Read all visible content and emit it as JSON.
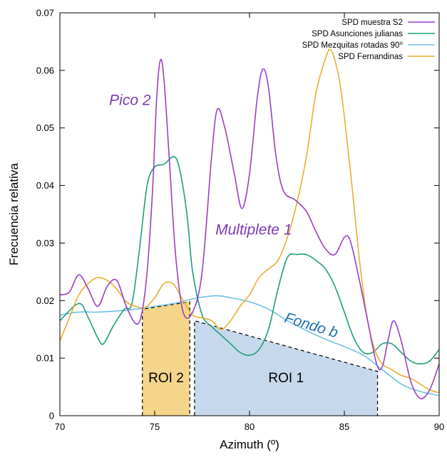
{
  "chart_data": {
    "type": "line",
    "xlabel": "Azimuth (º)",
    "ylabel": "Frecuencia relativa",
    "xlim": [
      70,
      90
    ],
    "ylim": [
      0,
      0.07
    ],
    "x_ticks": [
      "70",
      "75",
      "80",
      "85",
      "90"
    ],
    "y_ticks": [
      "0",
      "0.01",
      "0.02",
      "0.03",
      "0.04",
      "0.05",
      "0.06",
      "0.07"
    ],
    "grid": false,
    "legend_position": "top-right",
    "series": [
      {
        "name": "SPD muestra S2",
        "color": "#9b3fc4",
        "points": [
          [
            70,
            0.021
          ],
          [
            70.5,
            0.0215
          ],
          [
            71,
            0.0245
          ],
          [
            71.5,
            0.022
          ],
          [
            72,
            0.019
          ],
          [
            72.5,
            0.0225
          ],
          [
            73,
            0.0235
          ],
          [
            73.5,
            0.019
          ],
          [
            74,
            0.016
          ],
          [
            74.3,
            0.0175
          ],
          [
            74.6,
            0.025
          ],
          [
            74.9,
            0.04
          ],
          [
            75.1,
            0.055
          ],
          [
            75.3,
            0.0618
          ],
          [
            75.5,
            0.058
          ],
          [
            75.8,
            0.043
          ],
          [
            76.1,
            0.028
          ],
          [
            76.5,
            0.018
          ],
          [
            77,
            0.018
          ],
          [
            77.5,
            0.025
          ],
          [
            78,
            0.045
          ],
          [
            78.3,
            0.0532
          ],
          [
            78.7,
            0.05
          ],
          [
            79.2,
            0.042
          ],
          [
            79.6,
            0.036
          ],
          [
            80,
            0.042
          ],
          [
            80.4,
            0.055
          ],
          [
            80.7,
            0.0602
          ],
          [
            81,
            0.057
          ],
          [
            81.4,
            0.045
          ],
          [
            81.8,
            0.039
          ],
          [
            82.4,
            0.0375
          ],
          [
            83,
            0.0355
          ],
          [
            83.5,
            0.032
          ],
          [
            84,
            0.029
          ],
          [
            84.5,
            0.028
          ],
          [
            85,
            0.031
          ],
          [
            85.3,
            0.0305
          ],
          [
            85.7,
            0.025
          ],
          [
            86.2,
            0.017
          ],
          [
            86.7,
            0.009
          ],
          [
            87,
            0.0085
          ],
          [
            87.3,
            0.013
          ],
          [
            87.6,
            0.0165
          ],
          [
            88,
            0.013
          ],
          [
            88.5,
            0.006
          ],
          [
            89,
            0.003
          ],
          [
            89.5,
            0.0045
          ],
          [
            90,
            0.009
          ]
        ]
      },
      {
        "name": "SPD Asunciones julianas",
        "color": "#1f9e78",
        "points": [
          [
            70,
            0.0165
          ],
          [
            71,
            0.0195
          ],
          [
            71.5,
            0.017
          ],
          [
            72,
            0.0135
          ],
          [
            72.3,
            0.0125
          ],
          [
            72.8,
            0.0155
          ],
          [
            73.4,
            0.0185
          ],
          [
            73.8,
            0.0195
          ],
          [
            74.2,
            0.029
          ],
          [
            74.6,
            0.04
          ],
          [
            75,
            0.0432
          ],
          [
            75.5,
            0.0437
          ],
          [
            76,
            0.045
          ],
          [
            76.3,
            0.043
          ],
          [
            76.7,
            0.035
          ],
          [
            77,
            0.025
          ],
          [
            77.5,
            0.0175
          ],
          [
            78,
            0.0155
          ],
          [
            78.5,
            0.014
          ],
          [
            79,
            0.0125
          ],
          [
            79.5,
            0.011
          ],
          [
            80,
            0.0105
          ],
          [
            80.5,
            0.0115
          ],
          [
            81,
            0.015
          ],
          [
            81.5,
            0.022
          ],
          [
            82,
            0.0275
          ],
          [
            82.5,
            0.028
          ],
          [
            83,
            0.028
          ],
          [
            83.5,
            0.027
          ],
          [
            84,
            0.0255
          ],
          [
            84.5,
            0.0225
          ],
          [
            85,
            0.018
          ],
          [
            85.5,
            0.0135
          ],
          [
            86,
            0.011
          ],
          [
            86.5,
            0.011
          ],
          [
            87,
            0.0125
          ],
          [
            87.5,
            0.0125
          ],
          [
            88,
            0.011
          ],
          [
            88.5,
            0.0095
          ],
          [
            89,
            0.009
          ],
          [
            89.5,
            0.0095
          ],
          [
            90,
            0.0115
          ]
        ]
      },
      {
        "name": "SPD Mezquitas rotadas 90⁰",
        "color": "#6ec1e4",
        "points": [
          [
            70,
            0.0175
          ],
          [
            71,
            0.018
          ],
          [
            72,
            0.018
          ],
          [
            73,
            0.0182
          ],
          [
            74,
            0.0185
          ],
          [
            75,
            0.019
          ],
          [
            76,
            0.0195
          ],
          [
            77,
            0.0203
          ],
          [
            78,
            0.0208
          ],
          [
            78.5,
            0.0208
          ],
          [
            79,
            0.0205
          ],
          [
            80,
            0.0198
          ],
          [
            81,
            0.0185
          ],
          [
            82,
            0.0165
          ],
          [
            83,
            0.0148
          ],
          [
            84,
            0.0133
          ],
          [
            85,
            0.012
          ],
          [
            86,
            0.0105
          ],
          [
            87,
            0.008
          ],
          [
            88,
            0.0055
          ],
          [
            89,
            0.0042
          ],
          [
            90,
            0.0035
          ]
        ]
      },
      {
        "name": "SPD Fernandinas",
        "color": "#e8ae2f",
        "points": [
          [
            70,
            0.013
          ],
          [
            70.5,
            0.017
          ],
          [
            71,
            0.021
          ],
          [
            71.5,
            0.023
          ],
          [
            72,
            0.024
          ],
          [
            72.5,
            0.0235
          ],
          [
            73,
            0.022
          ],
          [
            73.5,
            0.0198
          ],
          [
            74,
            0.019
          ],
          [
            74.5,
            0.0188
          ],
          [
            75,
            0.0205
          ],
          [
            75.5,
            0.023
          ],
          [
            76,
            0.0228
          ],
          [
            76.5,
            0.02
          ],
          [
            77,
            0.0175
          ],
          [
            77.5,
            0.017
          ],
          [
            78,
            0.0165
          ],
          [
            78.5,
            0.015
          ],
          [
            79,
            0.0165
          ],
          [
            79.5,
            0.019
          ],
          [
            80,
            0.021
          ],
          [
            80.5,
            0.024
          ],
          [
            81,
            0.0255
          ],
          [
            81.5,
            0.027
          ],
          [
            82,
            0.031
          ],
          [
            82.5,
            0.037
          ],
          [
            83,
            0.045
          ],
          [
            83.5,
            0.056
          ],
          [
            84,
            0.062
          ],
          [
            84.3,
            0.0635
          ],
          [
            84.7,
            0.059
          ],
          [
            85,
            0.052
          ],
          [
            85.4,
            0.04
          ],
          [
            85.8,
            0.027
          ],
          [
            86.2,
            0.017
          ],
          [
            86.6,
            0.0115
          ],
          [
            87,
            0.009
          ],
          [
            87.5,
            0.008
          ],
          [
            88,
            0.007
          ],
          [
            88.5,
            0.0065
          ],
          [
            89,
            0.0055
          ],
          [
            89.5,
            0.0045
          ],
          [
            90,
            0.004
          ]
        ]
      }
    ],
    "regions": [
      {
        "label": "ROI 2",
        "color": "#f5d58a",
        "polygon": [
          [
            74.35,
            0
          ],
          [
            74.35,
            0.0185
          ],
          [
            76.85,
            0.0198
          ],
          [
            76.85,
            0
          ]
        ]
      },
      {
        "label": "ROI 1",
        "color": "#c6d9ec",
        "polygon": [
          [
            77.1,
            0
          ],
          [
            77.1,
            0.0165
          ],
          [
            86.75,
            0.0077
          ],
          [
            86.75,
            0
          ]
        ]
      }
    ],
    "annotations": [
      {
        "text": "Pico 2",
        "color": "#7a3ab8",
        "x": 72.6,
        "y": 0.054
      },
      {
        "text": "Multiplete 1",
        "color": "#7a3ab8",
        "x": 78.2,
        "y": 0.0315
      },
      {
        "text": "Fondo b",
        "color": "#1f6fb0",
        "x": 81.8,
        "y": 0.0163,
        "rotate": 17
      }
    ]
  }
}
